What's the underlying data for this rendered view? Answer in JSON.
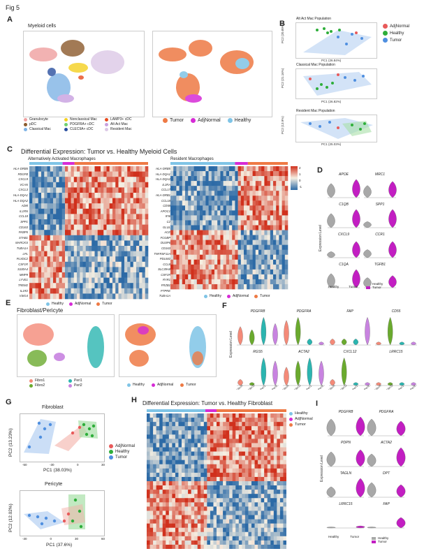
{
  "figure_title": "Fig 5",
  "panels": {
    "A": {
      "label": "A",
      "title": "Myeloid cells",
      "legend_left": [
        "Granulocyte",
        "pDC",
        "Classical Mac",
        "Nonclassical Mac",
        "PDGFRA+ cDC",
        "CLEC9A+ cDC",
        "LAMP3+ cDC",
        "Alt Act Mac",
        "Resident Mac"
      ],
      "legend_right": [
        "Tumor",
        "AdjNormal",
        "Healthy"
      ]
    },
    "B": {
      "label": "B",
      "plots": [
        {
          "title": "Alt Act Mac Population",
          "xlabel": "PC1 (26.84%)",
          "ylabel": "PC2 (20.89%)"
        },
        {
          "title": "Classical Mac Population",
          "xlabel": "PC1 (26.82%)",
          "ylabel": "PC2 (21.16%)"
        },
        {
          "title": "Resident Mac Population",
          "xlabel": "PC1 (25.03%)",
          "ylabel": "PC2 (13.9%)"
        }
      ],
      "legend": [
        "AdjNormal",
        "Healthy",
        "Tumor"
      ]
    },
    "C": {
      "label": "C",
      "title": "Differential Expression: Tumor vs. Healthy Myeloid Cells",
      "left_title": "Alternatively Activated Macrophages",
      "right_title": "Resident Macrophages",
      "genes_left": [
        "HLA-DRB5",
        "PDGFB",
        "CXCL9",
        "VCAN",
        "CXCL3",
        "HLA-DQA1",
        "HLA-DQA2",
        "ADM",
        "IL1RN",
        "CCL18",
        "SPP1",
        "CD163",
        "FKBP5",
        "STAB1",
        "MARCKS",
        "TUBA1A",
        "LPL",
        "PLXDC2",
        "CSF1R",
        "S100A4",
        "MMP9",
        "LYVE1",
        "TREM2",
        "IL1R2",
        "VSIG4"
      ],
      "genes_right": [
        "HLA-DRB5",
        "HLA-DQA1",
        "HLA-DQA2",
        "IL1RA",
        "CCL17",
        "HLA-DRB1",
        "CCL18",
        "CD58",
        "APOC1",
        "IFI6",
        "C2",
        "GLUL",
        "ACE",
        "FCGBP",
        "DUSP6",
        "CD163",
        "TNFRSF11A",
        "PDLIM2",
        "CCL8",
        "SLC39A8",
        "CSF1R",
        "RYR1",
        "FRZB1",
        "PTPRE",
        "TUBA1A",
        "IL18"
      ],
      "legend": [
        "Healthy",
        "AdjNormal",
        "Tumor"
      ],
      "colorbar": [
        "2",
        "1",
        "0",
        "-1"
      ]
    },
    "D": {
      "label": "D",
      "ylabel": "Expression Level",
      "genes": [
        "APOE",
        "MRC1",
        "C1QB",
        "SPP1",
        "CXCL9",
        "CCR1",
        "C1QA",
        "TGFB1"
      ],
      "xticks": [
        "Healthy",
        "Tumor"
      ],
      "legend": [
        "Healthy",
        "Tumor"
      ]
    },
    "E": {
      "label": "E",
      "title": "Fibroblast/Pericyte",
      "legend_left": [
        "Fibro1",
        "Fibro2",
        "Peri1",
        "Peri2"
      ],
      "legend_right": [
        "Healthy",
        "AdjNormal",
        "Tumor"
      ]
    },
    "F": {
      "label": "F",
      "ylabel": "Expression Level",
      "genes": [
        "PDGFRB",
        "PDGFRA",
        "FAP",
        "CD55",
        "RGS5",
        "ACTA2",
        "CXCL12",
        "LRRC15"
      ],
      "xticks": [
        "Fibro1",
        "Fibro2",
        "Peri1",
        "Peri2"
      ]
    },
    "G": {
      "label": "G",
      "plots": [
        {
          "title": "Fibroblast",
          "xlabel": "PC1 (38.03%)",
          "ylabel": "PC2 (13.23%)",
          "xticks": [
            "-50",
            "-30",
            "0",
            "30"
          ]
        },
        {
          "title": "Pericyte",
          "xlabel": "PC1 (37.6%)",
          "ylabel": "PC2 (12.02%)",
          "xticks": [
            "-30",
            "0",
            "30",
            "60"
          ]
        }
      ],
      "legend": [
        "AdjNormal",
        "Healthy",
        "Tumor"
      ]
    },
    "H": {
      "label": "H",
      "title": "Differential Expression: Tumor vs. Healthy Fibroblast",
      "legend": [
        "Healthy",
        "AdjNormal",
        "Tumor"
      ]
    },
    "I": {
      "label": "I",
      "ylabel": "Expression Level",
      "genes": [
        "PDGFRB",
        "PDGFRA",
        "PDPN",
        "ACTA2",
        "TAGLN",
        "DPT",
        "LRRC15",
        "FAP"
      ],
      "xticks": [
        "Healthy",
        "Tumor"
      ],
      "legend": [
        "Healthy",
        "Tumor"
      ]
    }
  },
  "colors": {
    "tumor": "#ee7a45",
    "adjnormal": "#d62bd6",
    "healthy": "#7fc4e6",
    "adj_b": "#e85a5a",
    "healthy_b": "#2eae3a",
    "tumor_b": "#4f8fe0",
    "gray_violin": "#a8a8a8",
    "magenta_violin": "#c21ec2",
    "heat_hi": "#d0301c",
    "heat_lo": "#2c6aa6"
  }
}
